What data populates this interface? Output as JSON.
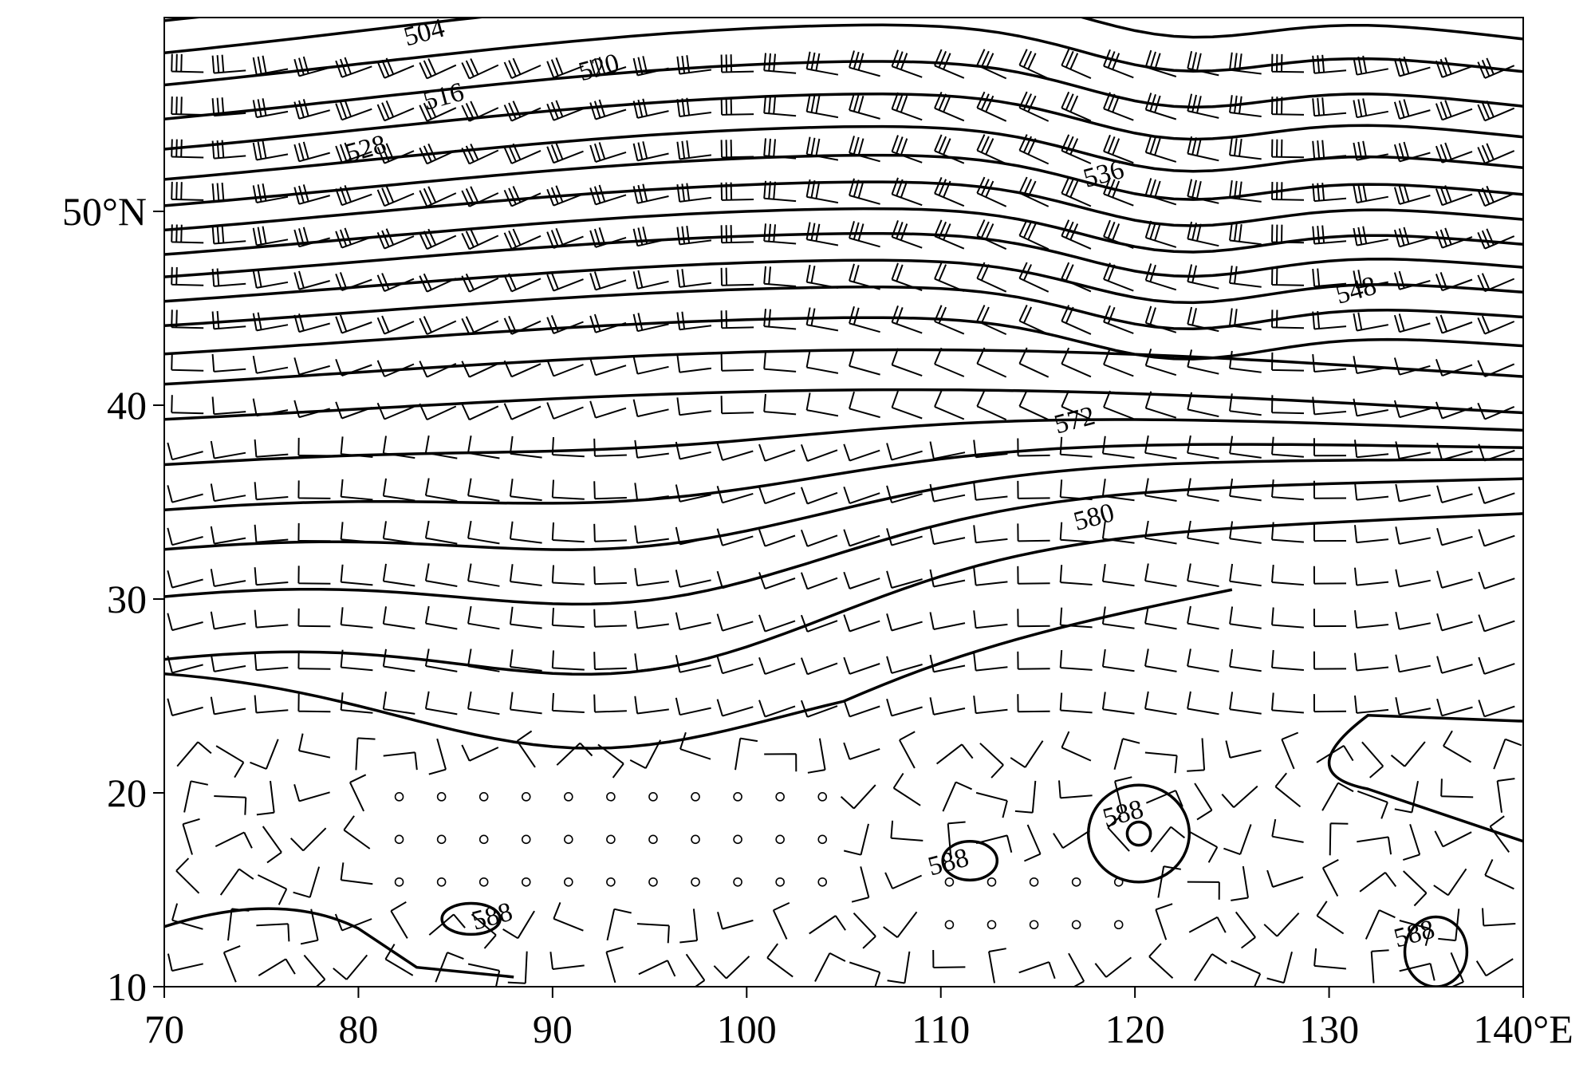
{
  "chart_data": {
    "type": "contour-map",
    "title": "",
    "xlim": [
      70,
      140
    ],
    "ylim": [
      10,
      60
    ],
    "x_ticks": [
      {
        "value": 70,
        "label": "70"
      },
      {
        "value": 80,
        "label": "80"
      },
      {
        "value": 90,
        "label": "90"
      },
      {
        "value": 100,
        "label": "100"
      },
      {
        "value": 110,
        "label": "110"
      },
      {
        "value": 120,
        "label": "120"
      },
      {
        "value": 130,
        "label": "130"
      },
      {
        "value": 140,
        "label": "140°E"
      }
    ],
    "y_ticks": [
      {
        "value": 10,
        "label": "10"
      },
      {
        "value": 20,
        "label": "20"
      },
      {
        "value": 30,
        "label": "30"
      },
      {
        "value": 40,
        "label": "40"
      },
      {
        "value": 50,
        "label": "50°N"
      }
    ],
    "contour_labels": [
      {
        "text": "504",
        "lon": 83.5,
        "lat": 58.8
      },
      {
        "text": "516",
        "lon": 84.5,
        "lat": 55.5
      },
      {
        "text": "520",
        "lon": 92.5,
        "lat": 57.0
      },
      {
        "text": "528",
        "lon": 80.5,
        "lat": 52.8
      },
      {
        "text": "536",
        "lon": 118.5,
        "lat": 51.5
      },
      {
        "text": "548",
        "lon": 131.5,
        "lat": 45.5
      },
      {
        "text": "572",
        "lon": 117.0,
        "lat": 38.8
      },
      {
        "text": "580",
        "lon": 118.0,
        "lat": 33.8
      },
      {
        "text": "588",
        "lon": 119.5,
        "lat": 18.5
      },
      {
        "text": "588",
        "lon": 110.5,
        "lat": 16.0
      },
      {
        "text": "588",
        "lon": 87.0,
        "lat": 13.2
      },
      {
        "text": "588",
        "lon": 134.5,
        "lat": 12.3
      }
    ],
    "contour_interval": 4,
    "wind_barbs": true,
    "grid": false
  }
}
